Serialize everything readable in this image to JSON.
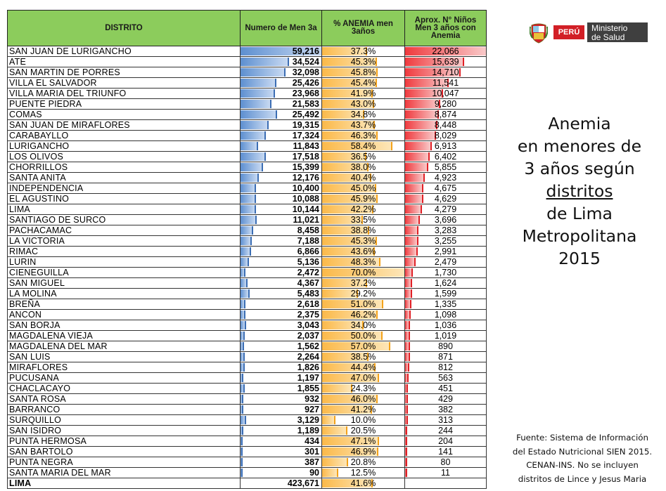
{
  "table": {
    "headers": [
      "DISTRITO",
      "Numero de Men 3a",
      "% ANEMIA men 3años",
      "Aprox. N° Niños Men 3 años con Anemia"
    ],
    "rows": [
      [
        "SAN JUAN DE LURIGANCHO",
        "59,216",
        "37.3%",
        "22,066"
      ],
      [
        "ATE",
        "34,524",
        "45.3%",
        "15,639"
      ],
      [
        "SAN MARTIN DE PORRES",
        "32,098",
        "45.8%",
        "14,710"
      ],
      [
        "VILLA EL SALVADOR",
        "25,426",
        "45.4%",
        "11,541"
      ],
      [
        "VILLA MARIA DEL TRIUNFO",
        "23,968",
        "41.9%",
        "10,047"
      ],
      [
        "PUENTE PIEDRA",
        "21,583",
        "43.0%",
        "9,280"
      ],
      [
        "COMAS",
        "25,492",
        "34.8%",
        "8,874"
      ],
      [
        "SAN JUAN DE MIRAFLORES",
        "19,315",
        "43.7%",
        "8,448"
      ],
      [
        "CARABAYLLO",
        "17,324",
        "46.3%",
        "8,029"
      ],
      [
        "LURIGANCHO",
        "11,843",
        "58.4%",
        "6,913"
      ],
      [
        "LOS OLIVOS",
        "17,518",
        "36.5%",
        "6,402"
      ],
      [
        "CHORRILLOS",
        "15,399",
        "38.0%",
        "5,855"
      ],
      [
        "SANTA ANITA",
        "12,176",
        "40.4%",
        "4,923"
      ],
      [
        "INDEPENDENCIA",
        "10,400",
        "45.0%",
        "4,675"
      ],
      [
        "EL AGUSTINO",
        "10,088",
        "45.9%",
        "4,629"
      ],
      [
        "LIMA",
        "10,144",
        "42.2%",
        "4,279"
      ],
      [
        "SANTIAGO DE SURCO",
        "11,021",
        "33.5%",
        "3,696"
      ],
      [
        "PACHACAMAC",
        "8,458",
        "38.8%",
        "3,283"
      ],
      [
        "LA VICTORIA",
        "7,188",
        "45.3%",
        "3,255"
      ],
      [
        "RIMAC",
        "6,866",
        "43.6%",
        "2,991"
      ],
      [
        "LURIN",
        "5,136",
        "48.3%",
        "2,479"
      ],
      [
        "CIENEGUILLA",
        "2,472",
        "70.0%",
        "1,730"
      ],
      [
        "SAN MIGUEL",
        "4,367",
        "37.2%",
        "1,624"
      ],
      [
        "LA MOLINA",
        "5,483",
        "29.2%",
        "1,599"
      ],
      [
        "BREÑA",
        "2,618",
        "51.0%",
        "1,335"
      ],
      [
        "ANCON",
        "2,375",
        "46.2%",
        "1,098"
      ],
      [
        "SAN BORJA",
        "3,043",
        "34.0%",
        "1,036"
      ],
      [
        "MAGDALENA VIEJA",
        "2,037",
        "50.0%",
        "1,019"
      ],
      [
        "MAGDALENA DEL MAR",
        "1,562",
        "57.0%",
        "890"
      ],
      [
        "SAN LUIS",
        "2,264",
        "38.5%",
        "871"
      ],
      [
        "MIRAFLORES",
        "1,826",
        "44.4%",
        "812"
      ],
      [
        "PUCUSANA",
        "1,197",
        "47.0%",
        "563"
      ],
      [
        "CHACLACAYO",
        "1,855",
        "24.3%",
        "451"
      ],
      [
        "SANTA ROSA",
        "932",
        "46.0%",
        "429"
      ],
      [
        "BARRANCO",
        "927",
        "41.2%",
        "382"
      ],
      [
        "SURQUILLO",
        "3,129",
        "10.0%",
        "313"
      ],
      [
        "SAN ISIDRO",
        "1,189",
        "20.5%",
        "244"
      ],
      [
        "PUNTA HERMOSA",
        "434",
        "47.1%",
        "204"
      ],
      [
        "SAN BARTOLO",
        "301",
        "46.9%",
        "141"
      ],
      [
        "PUNTA NEGRA",
        "387",
        "20.8%",
        "80"
      ],
      [
        "SANTA MARIA DEL MAR",
        "90",
        "12.5%",
        "11"
      ]
    ],
    "bars": {
      "numero": [
        59216,
        34524,
        32098,
        25426,
        23968,
        21583,
        25492,
        19315,
        17324,
        11843,
        17518,
        15399,
        12176,
        10400,
        10088,
        10144,
        11021,
        8458,
        7188,
        6866,
        5136,
        2472,
        4367,
        5483,
        2618,
        2375,
        3043,
        2037,
        1562,
        2264,
        1826,
        1197,
        1855,
        932,
        927,
        3129,
        1189,
        434,
        301,
        387,
        90
      ],
      "anemia_pct": [
        37.3,
        45.3,
        45.8,
        45.4,
        41.9,
        43.0,
        34.8,
        43.7,
        46.3,
        58.4,
        36.5,
        38.0,
        40.4,
        45.0,
        45.9,
        42.2,
        33.5,
        38.8,
        45.3,
        43.6,
        48.3,
        70.0,
        37.2,
        29.2,
        51.0,
        46.2,
        34.0,
        50.0,
        57.0,
        38.5,
        44.4,
        47.0,
        24.3,
        46.0,
        41.2,
        10.0,
        20.5,
        47.1,
        46.9,
        20.8,
        12.5
      ],
      "ninos": [
        22066,
        15639,
        14710,
        11541,
        10047,
        9280,
        8874,
        8448,
        8029,
        6913,
        6402,
        5855,
        4923,
        4675,
        4629,
        4279,
        3696,
        3283,
        3255,
        2991,
        2479,
        1730,
        1624,
        1599,
        1335,
        1098,
        1036,
        1019,
        890,
        871,
        812,
        563,
        451,
        429,
        382,
        313,
        244,
        204,
        141,
        80,
        11
      ],
      "numero_max": 59216,
      "anemia_max": 70.0,
      "ninos_max": 22066
    },
    "total": {
      "distrito": "LIMA",
      "numero": "423,671",
      "pct": "41.6%",
      "ninos": ""
    }
  },
  "logo": {
    "peru": "PERÚ",
    "ministerio_line1": "Ministerio",
    "ministerio_line2": "de Salud"
  },
  "side_title": {
    "line1": "Anemia",
    "line2": "en menores de",
    "line3": "3 años según",
    "line4": "distritos",
    "line5": "de Lima",
    "line6": "Metropolitana",
    "line7": "2015"
  },
  "source": {
    "line1": "Fuente: Sistema de Información",
    "line2": "del Estado Nutricional SIEN 2015.",
    "line3": "CENAN-INS. No se incluyen",
    "line4": "distritos de Lince y Jesus Maria"
  },
  "colors": {
    "header_bg": "#8ccc5c",
    "bar_blue": "#5d8fd0",
    "bar_orange": "#fbb949",
    "bar_red": "#ef3a3e",
    "peru_red": "#d21f26",
    "ministerio_gray": "#3f3f3f"
  }
}
